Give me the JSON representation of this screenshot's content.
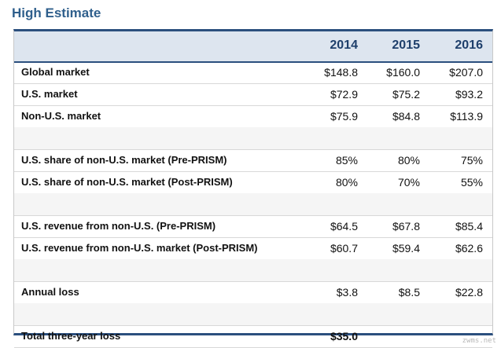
{
  "title": "High Estimate",
  "chart_data": {
    "type": "table",
    "columns": [
      "2014",
      "2015",
      "2016"
    ],
    "rows": [
      {
        "label": "Global market",
        "values": [
          "$148.8",
          "$160.0",
          "$207.0"
        ]
      },
      {
        "label": "U.S. market",
        "values": [
          "$72.9",
          "$75.2",
          "$93.2"
        ]
      },
      {
        "label": "Non-U.S. market",
        "values": [
          "$75.9",
          "$84.8",
          "$113.9"
        ]
      },
      {
        "label": "",
        "values": [
          "",
          "",
          ""
        ]
      },
      {
        "label": "U.S. share of non-U.S. market (Pre-PRISM)",
        "values": [
          "85%",
          "80%",
          "75%"
        ]
      },
      {
        "label": "U.S. share of non-U.S. market (Post-PRISM)",
        "values": [
          "80%",
          "70%",
          "55%"
        ]
      },
      {
        "label": "",
        "values": [
          "",
          "",
          ""
        ]
      },
      {
        "label": "U.S. revenue from non-U.S. (Pre-PRISM)",
        "values": [
          "$64.5",
          "$67.8",
          "$85.4"
        ]
      },
      {
        "label": "U.S. revenue from non-U.S. market (Post-PRISM)",
        "values": [
          "$60.7",
          "$59.4",
          "$62.6"
        ]
      },
      {
        "label": "",
        "values": [
          "",
          "",
          ""
        ]
      },
      {
        "label": "Annual loss",
        "values": [
          "$3.8",
          "$8.5",
          "$22.8"
        ]
      },
      {
        "label": "",
        "values": [
          "",
          "",
          ""
        ]
      },
      {
        "label": "Total three-year loss",
        "values": [
          "$35.0",
          "",
          ""
        ],
        "bold": true
      }
    ]
  },
  "watermark": "zwms.net",
  "colors": {
    "title": "#2f5f8c",
    "border": "#2b4f7e",
    "header_bg": "#dde5ef",
    "blank_row_bg": "#f5f5f5"
  }
}
